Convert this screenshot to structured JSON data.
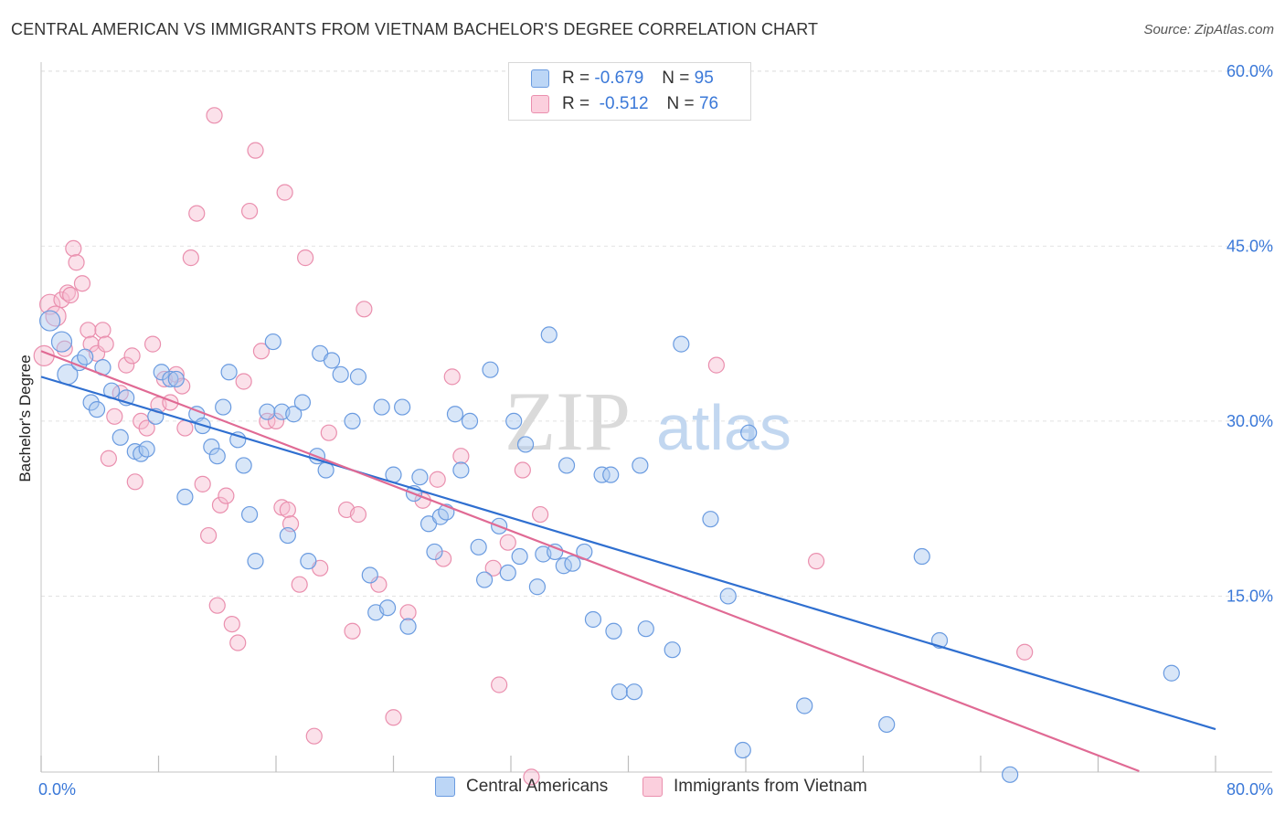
{
  "title": "CENTRAL AMERICAN VS IMMIGRANTS FROM VIETNAM BACHELOR'S DEGREE CORRELATION CHART",
  "source": "Source: ZipAtlas.com",
  "watermark": {
    "zip": "ZIP",
    "atlas": "atlas"
  },
  "legend": {
    "rows": [
      {
        "r_label": "R =",
        "r_value": "-0.679",
        "n_label": "N =",
        "n_value": "95"
      },
      {
        "r_label": "R =",
        "r_value": "-0.512",
        "n_label": "N =",
        "n_value": "76"
      }
    ]
  },
  "bottom_legend": [
    "Central Americans",
    "Immigrants from Vietnam"
  ],
  "colors": {
    "blue_fill": "#a9c8f0",
    "blue_stroke": "#6a9be0",
    "blue_line": "#2f6fd0",
    "pink_fill": "#f7bcd0",
    "pink_stroke": "#ea8fae",
    "pink_line": "#e06a94",
    "tick": "#3a78d8",
    "grid": "#e2e2e2"
  },
  "chart_data": {
    "type": "scatter",
    "title": "CENTRAL AMERICAN VS IMMIGRANTS FROM VIETNAM BACHELOR'S DEGREE CORRELATION CHART",
    "xlabel": "",
    "ylabel": "Bachelor's Degree",
    "xlim": [
      0,
      80
    ],
    "ylim": [
      0,
      64
    ],
    "x_tick_labels": [
      "0.0%",
      "80.0%"
    ],
    "y_ticks": [
      15,
      30,
      45,
      60
    ],
    "y_tick_labels": [
      "15.0%",
      "30.0%",
      "45.0%",
      "60.0%"
    ],
    "grid": true,
    "legend_position": "top-center",
    "series": [
      {
        "name": "Central Americans",
        "color": "#6a9be0",
        "trend": {
          "x": [
            0,
            80
          ],
          "y": [
            33.8,
            3.6
          ]
        },
        "points": [
          [
            0.6,
            38.6
          ],
          [
            1.4,
            36.8
          ],
          [
            1.8,
            34.0
          ],
          [
            2.6,
            35.0
          ],
          [
            3.0,
            35.5
          ],
          [
            3.4,
            31.6
          ],
          [
            3.8,
            31.0
          ],
          [
            4.2,
            34.6
          ],
          [
            4.8,
            32.6
          ],
          [
            5.4,
            28.6
          ],
          [
            5.8,
            32.0
          ],
          [
            6.4,
            27.4
          ],
          [
            6.8,
            27.2
          ],
          [
            7.2,
            27.6
          ],
          [
            7.8,
            30.4
          ],
          [
            8.2,
            34.2
          ],
          [
            8.8,
            33.6
          ],
          [
            9.2,
            33.6
          ],
          [
            9.8,
            23.5
          ],
          [
            10.6,
            30.6
          ],
          [
            11.0,
            29.6
          ],
          [
            11.6,
            27.8
          ],
          [
            12.0,
            27.0
          ],
          [
            12.4,
            31.2
          ],
          [
            12.8,
            34.2
          ],
          [
            13.4,
            28.4
          ],
          [
            13.8,
            26.2
          ],
          [
            14.2,
            22.0
          ],
          [
            14.6,
            18.0
          ],
          [
            15.4,
            30.8
          ],
          [
            15.8,
            36.8
          ],
          [
            16.4,
            30.8
          ],
          [
            16.8,
            20.2
          ],
          [
            17.2,
            30.6
          ],
          [
            17.8,
            31.6
          ],
          [
            18.2,
            18.0
          ],
          [
            18.8,
            27.0
          ],
          [
            19.0,
            35.8
          ],
          [
            19.4,
            25.8
          ],
          [
            19.8,
            35.2
          ],
          [
            20.4,
            34.0
          ],
          [
            21.2,
            30.0
          ],
          [
            21.6,
            33.8
          ],
          [
            22.4,
            16.8
          ],
          [
            22.8,
            13.6
          ],
          [
            23.2,
            31.2
          ],
          [
            23.6,
            14.0
          ],
          [
            24.0,
            25.4
          ],
          [
            24.6,
            31.2
          ],
          [
            25.0,
            12.4
          ],
          [
            25.4,
            23.8
          ],
          [
            25.8,
            25.2
          ],
          [
            26.4,
            21.2
          ],
          [
            26.8,
            18.8
          ],
          [
            27.2,
            21.8
          ],
          [
            27.6,
            22.2
          ],
          [
            28.2,
            30.6
          ],
          [
            28.6,
            25.8
          ],
          [
            29.2,
            30.0
          ],
          [
            29.8,
            19.2
          ],
          [
            30.2,
            16.4
          ],
          [
            30.6,
            34.4
          ],
          [
            31.2,
            21.0
          ],
          [
            31.8,
            17.0
          ],
          [
            32.2,
            30.0
          ],
          [
            32.6,
            18.4
          ],
          [
            33.0,
            28.0
          ],
          [
            33.8,
            15.8
          ],
          [
            34.2,
            18.6
          ],
          [
            34.6,
            37.4
          ],
          [
            35.0,
            18.8
          ],
          [
            35.6,
            17.6
          ],
          [
            35.8,
            26.2
          ],
          [
            36.2,
            17.8
          ],
          [
            37.0,
            18.8
          ],
          [
            37.6,
            13.0
          ],
          [
            38.2,
            25.4
          ],
          [
            38.8,
            25.4
          ],
          [
            39.0,
            12.0
          ],
          [
            39.4,
            6.8
          ],
          [
            40.4,
            6.8
          ],
          [
            40.8,
            26.2
          ],
          [
            41.2,
            12.2
          ],
          [
            43.0,
            10.4
          ],
          [
            43.6,
            36.6
          ],
          [
            45.6,
            21.6
          ],
          [
            46.8,
            15.0
          ],
          [
            47.8,
            1.8
          ],
          [
            48.2,
            29.0
          ],
          [
            52.0,
            5.6
          ],
          [
            57.6,
            4.0
          ],
          [
            60.0,
            18.4
          ],
          [
            61.2,
            11.2
          ],
          [
            77.0,
            8.4
          ],
          [
            66.0,
            -0.3
          ]
        ]
      },
      {
        "name": "Immigrants from Vietnam",
        "color": "#ea8fae",
        "trend": {
          "x": [
            0,
            74.8
          ],
          "y": [
            36.0,
            0.0
          ]
        },
        "points": [
          [
            0.2,
            35.6
          ],
          [
            0.6,
            40.0
          ],
          [
            1.0,
            39.0
          ],
          [
            1.4,
            40.4
          ],
          [
            1.6,
            36.2
          ],
          [
            1.8,
            41.0
          ],
          [
            2.0,
            40.8
          ],
          [
            2.2,
            44.8
          ],
          [
            2.4,
            43.6
          ],
          [
            2.8,
            41.8
          ],
          [
            3.2,
            37.8
          ],
          [
            3.4,
            36.6
          ],
          [
            3.8,
            35.8
          ],
          [
            4.2,
            37.8
          ],
          [
            4.4,
            36.6
          ],
          [
            4.6,
            26.8
          ],
          [
            5.0,
            30.4
          ],
          [
            5.4,
            32.4
          ],
          [
            5.8,
            34.8
          ],
          [
            6.2,
            35.6
          ],
          [
            6.4,
            24.8
          ],
          [
            6.8,
            30.0
          ],
          [
            7.2,
            29.4
          ],
          [
            7.6,
            36.6
          ],
          [
            8.0,
            31.4
          ],
          [
            8.4,
            33.6
          ],
          [
            8.8,
            31.6
          ],
          [
            9.2,
            34.0
          ],
          [
            9.6,
            33.0
          ],
          [
            9.8,
            29.4
          ],
          [
            10.2,
            44.0
          ],
          [
            10.6,
            47.8
          ],
          [
            11.0,
            24.6
          ],
          [
            11.4,
            20.2
          ],
          [
            11.8,
            56.2
          ],
          [
            12.2,
            22.8
          ],
          [
            12.6,
            23.6
          ],
          [
            13.0,
            12.6
          ],
          [
            13.4,
            11.0
          ],
          [
            13.8,
            33.4
          ],
          [
            14.2,
            48.0
          ],
          [
            14.6,
            53.2
          ],
          [
            15.0,
            36.0
          ],
          [
            15.4,
            30.0
          ],
          [
            16.0,
            30.0
          ],
          [
            16.4,
            22.6
          ],
          [
            16.6,
            49.6
          ],
          [
            16.8,
            22.4
          ],
          [
            17.0,
            21.2
          ],
          [
            17.6,
            16.0
          ],
          [
            18.0,
            44.0
          ],
          [
            18.6,
            3.0
          ],
          [
            19.0,
            17.4
          ],
          [
            19.6,
            29.0
          ],
          [
            20.8,
            22.4
          ],
          [
            21.2,
            12.0
          ],
          [
            21.6,
            22.0
          ],
          [
            22.0,
            39.6
          ],
          [
            23.0,
            16.0
          ],
          [
            24.0,
            4.6
          ],
          [
            25.0,
            13.6
          ],
          [
            26.0,
            23.2
          ],
          [
            27.0,
            25.0
          ],
          [
            27.4,
            18.2
          ],
          [
            28.0,
            33.8
          ],
          [
            28.6,
            27.0
          ],
          [
            30.8,
            17.4
          ],
          [
            31.2,
            7.4
          ],
          [
            31.8,
            19.6
          ],
          [
            32.8,
            25.8
          ],
          [
            34.0,
            22.0
          ],
          [
            33.4,
            -0.5
          ],
          [
            46.0,
            34.8
          ],
          [
            52.8,
            18.0
          ],
          [
            67.0,
            10.2
          ],
          [
            12.0,
            14.2
          ]
        ]
      }
    ]
  }
}
